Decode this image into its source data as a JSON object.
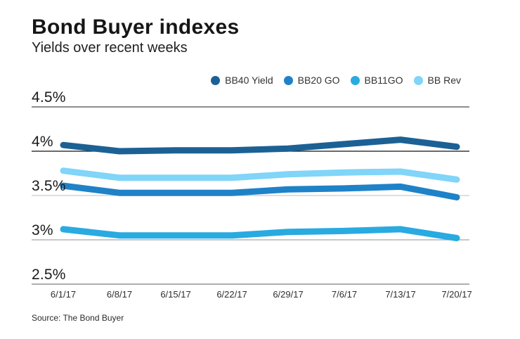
{
  "header": {
    "title": "Bond Buyer indexes",
    "subtitle": "Yields over recent weeks"
  },
  "footer": {
    "source": "Source: The Bond Buyer"
  },
  "chart_data": {
    "type": "line",
    "title": "Bond Buyer indexes",
    "subtitle": "Yields over recent weeks",
    "unit": "%",
    "grid": "horizontal",
    "legend_position": "top-right",
    "x_labels": [
      "6/1/17",
      "6/8/17",
      "6/15/17",
      "6/22/17",
      "6/29/17",
      "7/6/17",
      "7/13/17",
      "7/20/17"
    ],
    "y_ticks": [
      "4.5%",
      "4%",
      "3.5%",
      "3%",
      "2.5%"
    ],
    "y_tick_values": [
      4.5,
      4.0,
      3.5,
      3.0,
      2.5
    ],
    "ylim": [
      2.5,
      4.5
    ],
    "series": [
      {
        "name": "BB40 Yield",
        "color": "#1c6195",
        "values": [
          4.07,
          4.0,
          4.01,
          4.01,
          4.03,
          4.08,
          4.13,
          4.05
        ]
      },
      {
        "name": "BB20 GO",
        "color": "#1e82c8",
        "values": [
          3.61,
          3.53,
          3.53,
          3.53,
          3.57,
          3.58,
          3.6,
          3.48
        ]
      },
      {
        "name": "BB11GO",
        "color": "#29aae1",
        "values": [
          3.12,
          3.05,
          3.05,
          3.05,
          3.09,
          3.1,
          3.12,
          3.02
        ]
      },
      {
        "name": "BB Rev",
        "color": "#80d5f8",
        "values": [
          3.78,
          3.7,
          3.7,
          3.7,
          3.74,
          3.76,
          3.77,
          3.68
        ]
      }
    ],
    "source": "Source: The Bond Buyer"
  }
}
